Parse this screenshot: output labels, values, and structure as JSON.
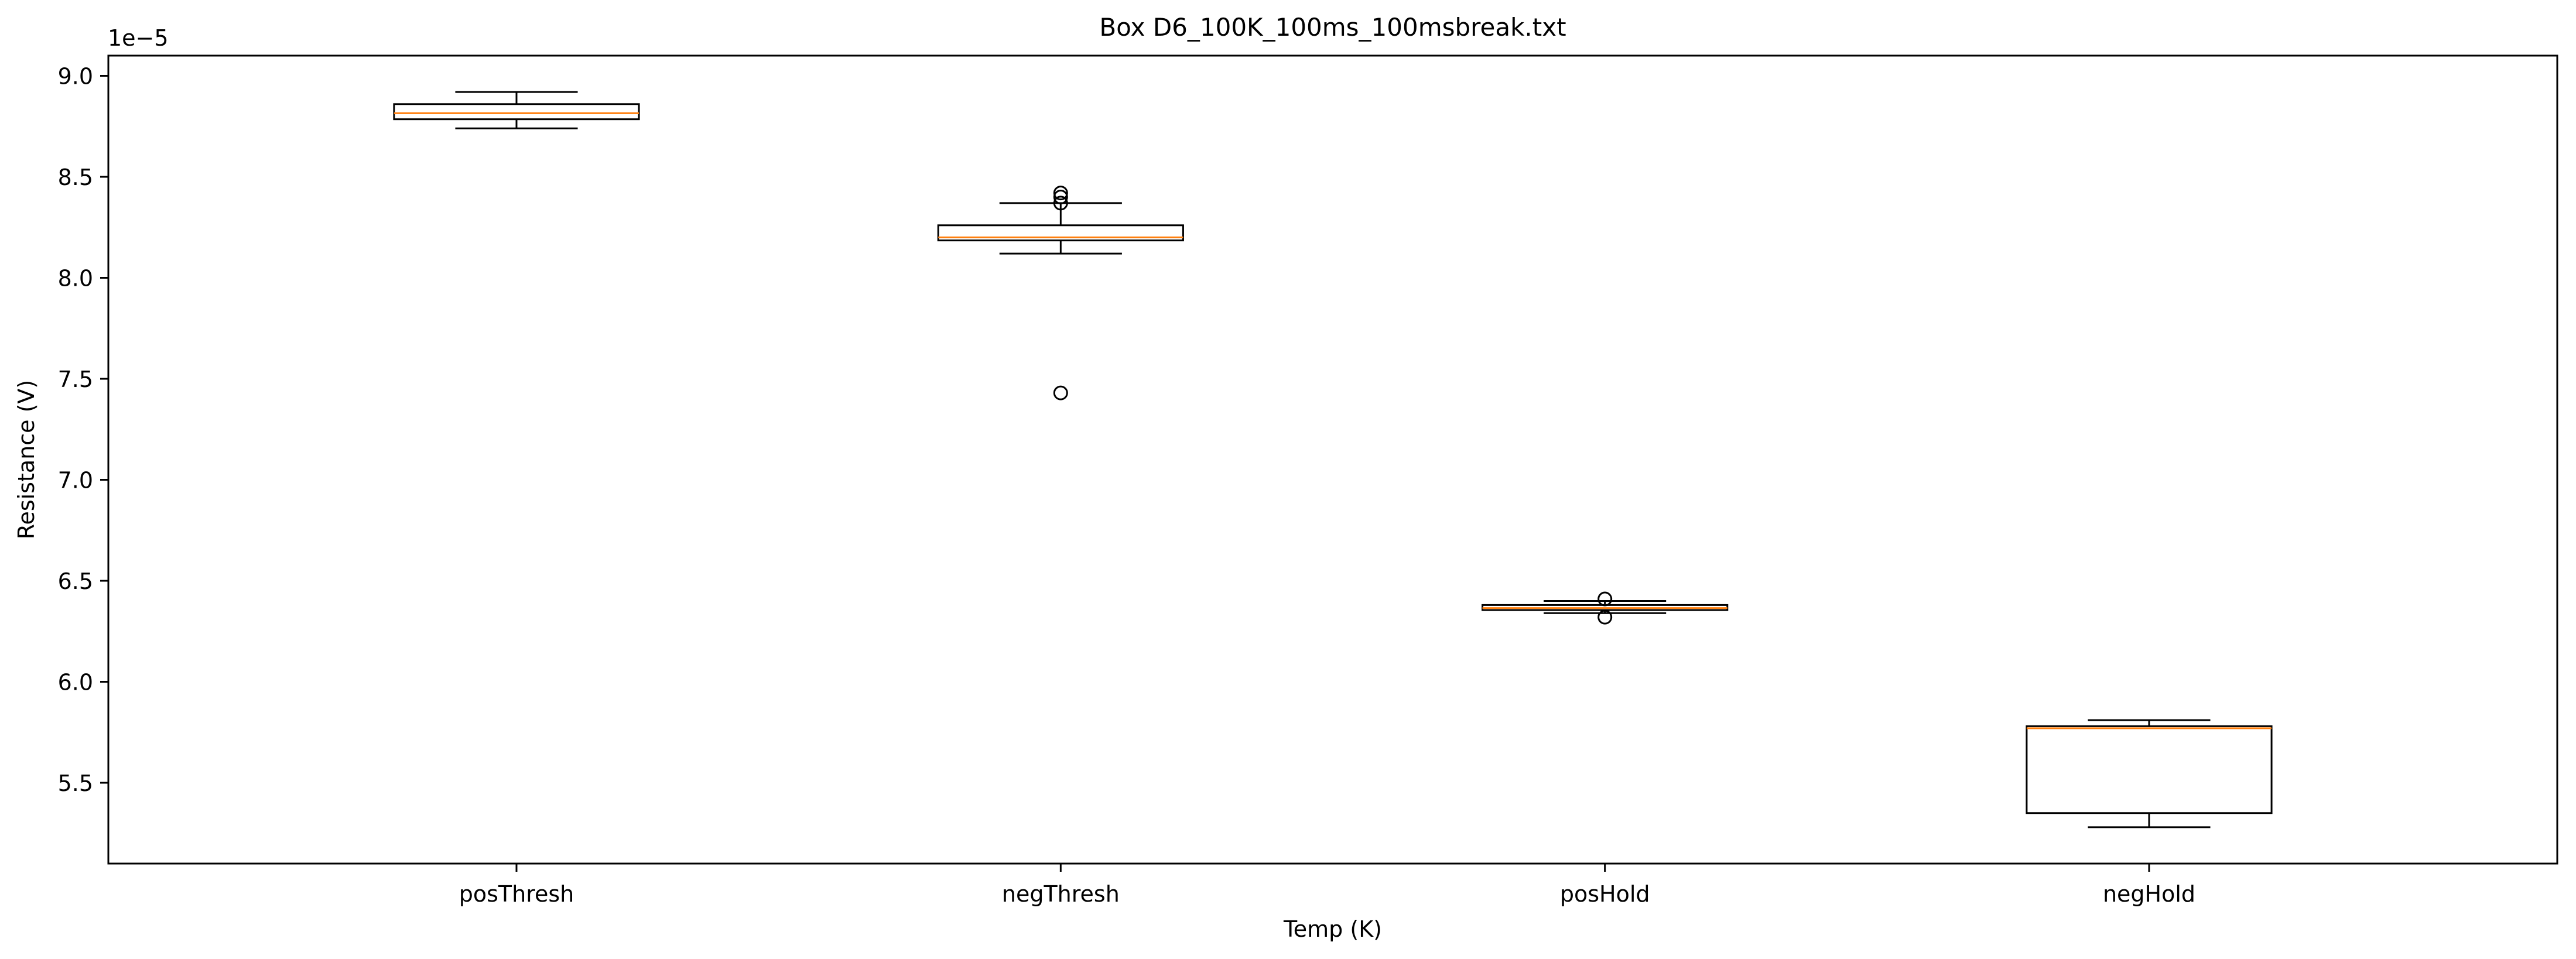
{
  "chart_data": {
    "type": "box",
    "title": "Box D6_100K_100ms_100msbreak.txt",
    "xlabel": "Temp (K)",
    "ylabel": "Resistance (V)",
    "y_offset_label": "1e−5",
    "y_scale_factor": 1e-05,
    "ylim": [
      5.1,
      9.1
    ],
    "yticks": [
      5.5,
      6.0,
      6.5,
      7.0,
      7.5,
      8.0,
      8.5,
      9.0
    ],
    "ytick_labels": [
      "5.5",
      "6.0",
      "6.5",
      "7.0",
      "7.5",
      "8.0",
      "8.5",
      "9.0"
    ],
    "categories": [
      "posThresh",
      "negThresh",
      "posHold",
      "negHold"
    ],
    "boxes": [
      {
        "label": "posThresh",
        "whisker_low": 8.74,
        "q1": 8.785,
        "median": 8.815,
        "q3": 8.86,
        "whisker_high": 8.92,
        "outliers": []
      },
      {
        "label": "negThresh",
        "whisker_low": 8.12,
        "q1": 8.185,
        "median": 8.2,
        "q3": 8.26,
        "whisker_high": 8.37,
        "outliers": [
          8.42,
          8.4,
          8.37,
          7.43
        ]
      },
      {
        "label": "posHold",
        "whisker_low": 6.34,
        "q1": 6.355,
        "median": 6.365,
        "q3": 6.38,
        "whisker_high": 6.4,
        "outliers": [
          6.41,
          6.32
        ]
      },
      {
        "label": "negHold",
        "whisker_low": 5.28,
        "q1": 5.35,
        "median": 5.77,
        "q3": 5.78,
        "whisker_high": 5.81,
        "outliers": []
      }
    ],
    "grid": false,
    "colors": {
      "box": "#000000",
      "median": "#ff7f0e",
      "background": "#ffffff"
    }
  }
}
